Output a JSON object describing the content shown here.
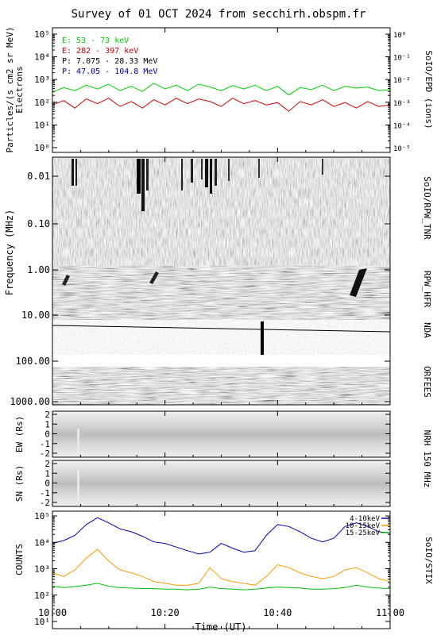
{
  "title": "Survey of 01 OCT 2024 from secchirh.obspm.fr",
  "xaxis": {
    "label": "Time (UT)",
    "range_minutes": [
      0,
      60
    ],
    "ticks": [
      {
        "min": 0,
        "label": "10:00"
      },
      {
        "min": 20,
        "label": "10:20"
      },
      {
        "min": 40,
        "label": "10:40"
      },
      {
        "min": 60,
        "label": "11:00"
      }
    ]
  },
  "colors": {
    "green": "#00d000",
    "red": "#d00000",
    "blue": "#0000b0",
    "orange": "#ff9900",
    "stix_green": "#00c000"
  },
  "panels": {
    "epd": {
      "right_label": "SoIO/EPD (ions)",
      "left_label_1": "Particles/(s cm2 sr MeV)",
      "left_label_2": "Electrons",
      "left_ticks": [
        "10⁰",
        "10¹",
        "10²",
        "10³",
        "10⁴",
        "10⁵"
      ],
      "right_ticks": [
        "10⁻⁵",
        "10⁻⁴",
        "10⁻³",
        "10⁻²",
        "10⁻¹",
        "10⁰"
      ],
      "legend": [
        {
          "text": "E: 53 - 73 keV",
          "color": "#00d000"
        },
        {
          "text": "E: 282 - 397 keV",
          "color": "#d00000"
        },
        {
          "text": "P: 7.075 - 28.33 MeV",
          "color": "#000000"
        },
        {
          "text": "P: 47.05 - 104.8 MeV",
          "color": "#0000b0"
        }
      ]
    },
    "spectro": {
      "ylabel": "Frequency (MHz)",
      "ticks": [
        "0.01",
        "0.10",
        "1.00",
        "10.00",
        "100.00",
        "1000.00"
      ],
      "right_labels": [
        "SoIO/RPW_TNR",
        "RPW_HFR",
        "NDA",
        "ORFEES"
      ]
    },
    "nrh_ew": {
      "ylabel": "EW (Rs)",
      "ticks": [
        "2",
        "1",
        "0",
        "-1",
        "-2"
      ]
    },
    "nrh_sn": {
      "ylabel": "SN (Rs)",
      "ticks": [
        "2",
        "1",
        "0",
        "-1",
        "-2"
      ]
    },
    "nrh_right": "NRH 150 MHz",
    "stix": {
      "ylabel": "COUNTS",
      "right_label": "SoIO/STIX",
      "ticks": [
        "10⁵",
        "10⁴",
        "10³",
        "10²",
        "10¹"
      ],
      "legend": [
        {
          "text": "4-10keV",
          "color": "#0000b0"
        },
        {
          "text": "10-15keV",
          "color": "#ff9900"
        },
        {
          "text": "15-25keV",
          "color": "#00c000"
        }
      ]
    }
  },
  "chart_data": [
    {
      "type": "line",
      "panel": "SoIO/EPD",
      "yscale": "log",
      "ylim": [
        1,
        100000
      ],
      "x_minutes": [
        0,
        2,
        4,
        6,
        8,
        10,
        12,
        14,
        16,
        18,
        20,
        22,
        24,
        26,
        28,
        30,
        32,
        34,
        36,
        38,
        40,
        42,
        44,
        46,
        48,
        50,
        52,
        54,
        56,
        58,
        60
      ],
      "series": [
        {
          "name": "E: 53 - 73 keV",
          "values": [
            260,
            400,
            300,
            500,
            350,
            550,
            300,
            450,
            280,
            600,
            350,
            500,
            300,
            550,
            420,
            300,
            480,
            350,
            500,
            300,
            450,
            200,
            400,
            330,
            500,
            300,
            450,
            380,
            420,
            300,
            330
          ]
        },
        {
          "name": "E: 282 - 397 keV",
          "values": [
            80,
            120,
            60,
            140,
            90,
            150,
            70,
            110,
            60,
            130,
            80,
            150,
            90,
            140,
            110,
            70,
            150,
            90,
            120,
            80,
            100,
            45,
            110,
            80,
            130,
            70,
            100,
            60,
            110,
            70,
            80
          ]
        }
      ]
    },
    {
      "type": "line",
      "panel": "SoIO/STIX",
      "yscale": "log",
      "ylim": [
        10,
        100000
      ],
      "x_minutes": [
        0,
        2,
        4,
        6,
        8,
        10,
        12,
        14,
        16,
        18,
        20,
        22,
        24,
        26,
        28,
        30,
        32,
        34,
        36,
        38,
        40,
        42,
        44,
        46,
        48,
        50,
        52,
        54,
        56,
        58,
        60
      ],
      "series": [
        {
          "name": "4-10keV",
          "values": [
            8000,
            10000,
            15000,
            35000,
            60000,
            40000,
            25000,
            20000,
            14000,
            9000,
            8000,
            6000,
            4500,
            3500,
            4000,
            8000,
            5500,
            4000,
            4500,
            15000,
            35000,
            30000,
            20000,
            12000,
            9000,
            12000,
            30000,
            40000,
            30000,
            20000,
            18000
          ]
        },
        {
          "name": "10-15keV",
          "values": [
            800,
            600,
            1000,
            2500,
            5000,
            2000,
            1000,
            800,
            600,
            400,
            350,
            300,
            300,
            350,
            1200,
            500,
            400,
            350,
            300,
            600,
            1500,
            1200,
            800,
            600,
            500,
            600,
            1000,
            1200,
            800,
            500,
            400
          ]
        },
        {
          "name": "15-25keV",
          "values": [
            280,
            250,
            270,
            300,
            350,
            280,
            250,
            240,
            230,
            230,
            220,
            220,
            210,
            220,
            260,
            230,
            220,
            210,
            220,
            240,
            260,
            250,
            240,
            220,
            220,
            230,
            250,
            300,
            260,
            240,
            230
          ]
        }
      ]
    }
  ]
}
